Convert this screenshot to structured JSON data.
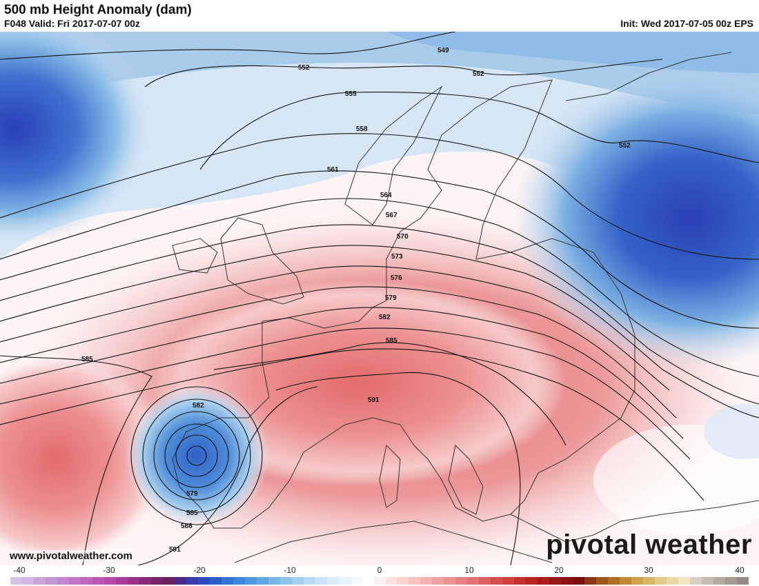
{
  "header": {
    "title": "500 mb Height Anomaly (dam)",
    "valid": "F048 Valid: Fri 2017-07-07 00z",
    "init": "Init: Wed 2017-07-05 00z EPS"
  },
  "contour_labels": [
    "549",
    "552",
    "552",
    "552",
    "555",
    "558",
    "561",
    "564",
    "567",
    "570",
    "573",
    "576",
    "579",
    "582",
    "585",
    "585",
    "582",
    "579",
    "585",
    "588",
    "591",
    "591"
  ],
  "watermark": {
    "url": "www.pivotalweather.com",
    "brand": "pivotal weather"
  },
  "colorbar": {
    "ticks": [
      "-40",
      "-30",
      "-20",
      "-10",
      "0",
      "10",
      "20",
      "30",
      "40"
    ],
    "min": -40,
    "max": 40,
    "colors": [
      "#d6c3e8",
      "#cfb6e3",
      "#c9a5dc",
      "#c594d4",
      "#c385cd",
      "#c176c5",
      "#bf67bd",
      "#bb58b4",
      "#b549a9",
      "#a93b9c",
      "#993189",
      "#882a78",
      "#762468",
      "#6b2060",
      "#4a2a8a",
      "#3a3aa8",
      "#2c4bbd",
      "#2a5fca",
      "#3073d2",
      "#3f87d9",
      "#5098dd",
      "#64a8e2",
      "#79b6e6",
      "#8ec3ea",
      "#a3cfee",
      "#b7daf2",
      "#c9e4f6",
      "#daedf9",
      "#e8f4fb",
      "#f4f9fd",
      "#ffffff",
      "#fdf0f0",
      "#fbe1e1",
      "#f9d2d2",
      "#f6c2c2",
      "#f3b2b2",
      "#f0a2a2",
      "#ec9292",
      "#e88282",
      "#e37171",
      "#dd6060",
      "#d64f4f",
      "#ce3f3f",
      "#c43030",
      "#b82424",
      "#aa1b1b",
      "#9a1515",
      "#8a1212",
      "#7a1010",
      "#8a3a12",
      "#9c5418",
      "#ae6e22",
      "#c0882e",
      "#cca24a",
      "#d8b868",
      "#e2cb88",
      "#eadba6",
      "#f0e6c0",
      "#d8d0c0",
      "#c6bcb0",
      "#b4aaa0",
      "#a49a92",
      "#948b84"
    ]
  }
}
